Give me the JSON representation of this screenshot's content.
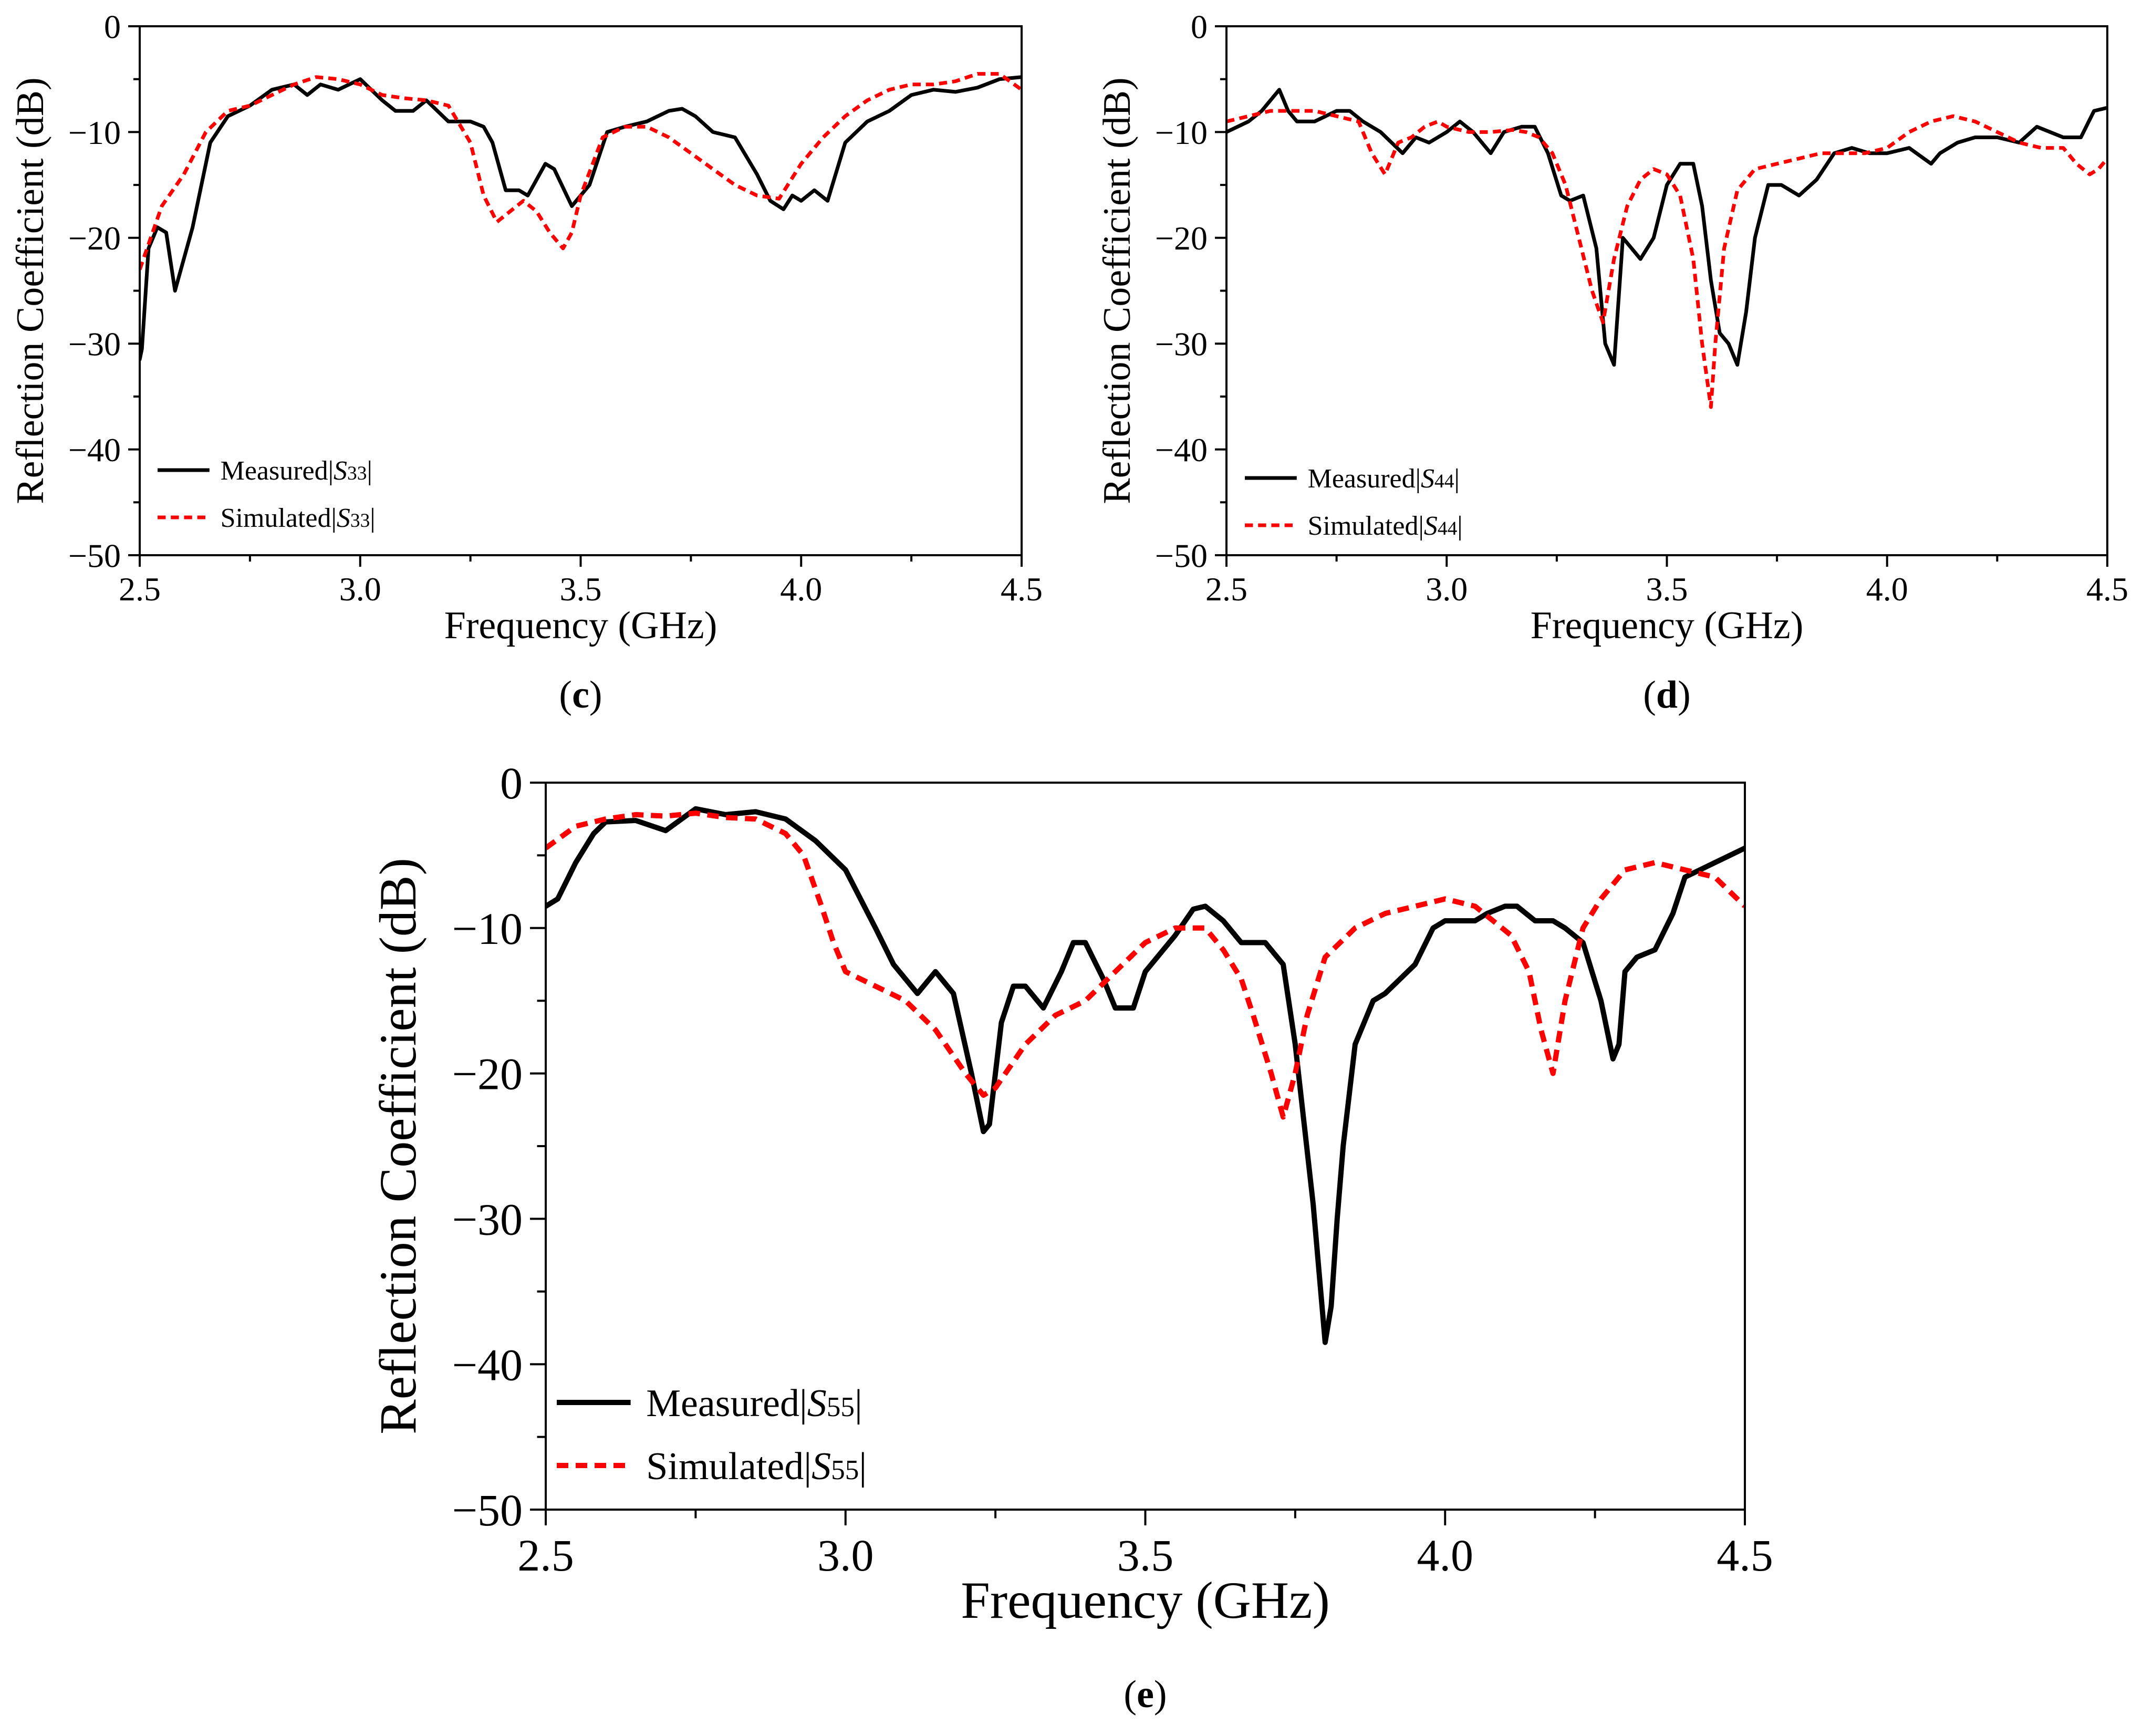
{
  "chart_data": [
    {
      "type": "line",
      "caption": "c",
      "xlabel": "Frequency (GHz)",
      "ylabel": "Reflection Coefficient (dB)",
      "xlim": [
        2.5,
        4.5
      ],
      "ylim": [
        -50,
        0
      ],
      "xticks": [
        "2.5",
        "3.0",
        "3.5",
        "4.0",
        "4.5"
      ],
      "yticks": [
        "0",
        "−10",
        "−20",
        "−30",
        "−40",
        "−50"
      ],
      "legend_position": "bottom-left",
      "series": [
        {
          "name": "Measured|S33|",
          "label_prefix": "Measured|",
          "label_var": "S",
          "label_sub": "33",
          "label_suffix": "|",
          "style": "solid",
          "color": "#000000",
          "x": [
            2.5,
            2.505,
            2.52,
            2.54,
            2.56,
            2.58,
            2.62,
            2.66,
            2.7,
            2.75,
            2.8,
            2.85,
            2.88,
            2.91,
            2.95,
            3.0,
            3.05,
            3.08,
            3.12,
            3.15,
            3.2,
            3.25,
            3.28,
            3.3,
            3.33,
            3.36,
            3.38,
            3.42,
            3.44,
            3.48,
            3.52,
            3.56,
            3.6,
            3.65,
            3.7,
            3.73,
            3.76,
            3.8,
            3.85,
            3.9,
            3.93,
            3.96,
            3.98,
            4.0,
            4.03,
            4.06,
            4.1,
            4.15,
            4.2,
            4.25,
            4.3,
            4.35,
            4.4,
            4.45,
            4.5
          ],
          "y": [
            -31.5,
            -30.5,
            -21,
            -19,
            -19.5,
            -25,
            -19,
            -11,
            -8.5,
            -7.5,
            -6,
            -5.5,
            -6.5,
            -5.5,
            -6,
            -5,
            -7,
            -8,
            -8,
            -7,
            -9,
            -9,
            -9.5,
            -11,
            -15.5,
            -15.5,
            -16,
            -13,
            -13.5,
            -17,
            -15,
            -10,
            -9.5,
            -9,
            -8,
            -7.8,
            -8.5,
            -10,
            -10.5,
            -14,
            -16.5,
            -17.3,
            -16,
            -16.5,
            -15.5,
            -16.5,
            -11,
            -9,
            -8,
            -6.5,
            -6,
            -6.2,
            -5.8,
            -5,
            -4.8
          ]
        },
        {
          "name": "Simulated|S33|",
          "label_prefix": "Simulated|",
          "label_var": "S",
          "label_sub": "33",
          "label_suffix": "|",
          "style": "dashed",
          "color": "#ff0000",
          "x": [
            2.5,
            2.55,
            2.6,
            2.65,
            2.7,
            2.75,
            2.8,
            2.85,
            2.9,
            2.95,
            3.0,
            3.05,
            3.1,
            3.15,
            3.2,
            3.25,
            3.28,
            3.31,
            3.34,
            3.37,
            3.4,
            3.43,
            3.46,
            3.48,
            3.5,
            3.55,
            3.6,
            3.65,
            3.7,
            3.75,
            3.8,
            3.85,
            3.9,
            3.95,
            4.0,
            4.05,
            4.1,
            4.15,
            4.2,
            4.25,
            4.3,
            4.35,
            4.4,
            4.45,
            4.5
          ],
          "y": [
            -23,
            -17,
            -14,
            -10,
            -8,
            -7.5,
            -6.5,
            -5.5,
            -4.8,
            -5,
            -5.5,
            -6.5,
            -6.8,
            -7,
            -7.5,
            -11,
            -16,
            -18.5,
            -17.5,
            -16.5,
            -17.5,
            -19.5,
            -21,
            -19.5,
            -16,
            -10.5,
            -9.5,
            -9.5,
            -10.5,
            -12,
            -13.5,
            -15,
            -16,
            -16.3,
            -13,
            -10.5,
            -8.5,
            -7,
            -6,
            -5.5,
            -5.5,
            -5.2,
            -4.5,
            -4.5,
            -6
          ]
        }
      ]
    },
    {
      "type": "line",
      "caption": "d",
      "xlabel": "Frequency (GHz)",
      "ylabel": "Reflection Coefficient (dB)",
      "xlim": [
        2.5,
        4.5
      ],
      "ylim": [
        -50,
        0
      ],
      "xticks": [
        "2.5",
        "3.0",
        "3.5",
        "4.0",
        "4.5"
      ],
      "yticks": [
        "0",
        "−10",
        "−20",
        "−30",
        "−40",
        "−50"
      ],
      "legend_position": "bottom-left",
      "series": [
        {
          "name": "Measured|S44|",
          "label_prefix": "Measured|",
          "label_var": "S",
          "label_sub": "44",
          "label_suffix": "|",
          "style": "solid",
          "color": "#000000",
          "x": [
            2.5,
            2.55,
            2.58,
            2.6,
            2.62,
            2.64,
            2.66,
            2.7,
            2.75,
            2.78,
            2.81,
            2.85,
            2.9,
            2.93,
            2.96,
            3.0,
            3.03,
            3.06,
            3.1,
            3.13,
            3.17,
            3.2,
            3.23,
            3.26,
            3.28,
            3.31,
            3.34,
            3.36,
            3.38,
            3.4,
            3.42,
            3.44,
            3.47,
            3.5,
            3.53,
            3.56,
            3.58,
            3.6,
            3.62,
            3.64,
            3.66,
            3.68,
            3.7,
            3.73,
            3.76,
            3.8,
            3.84,
            3.88,
            3.92,
            3.96,
            4.0,
            4.05,
            4.1,
            4.12,
            4.16,
            4.2,
            4.25,
            4.3,
            4.34,
            4.37,
            4.4,
            4.44,
            4.47,
            4.5
          ],
          "y": [
            -10,
            -9,
            -8,
            -7,
            -6,
            -8,
            -9,
            -9,
            -8,
            -8,
            -9,
            -10,
            -12,
            -10.5,
            -11,
            -10,
            -9,
            -10,
            -12,
            -10,
            -9.5,
            -9.5,
            -12,
            -16,
            -16.5,
            -16,
            -21,
            -30,
            -32,
            -20,
            -21,
            -22,
            -20,
            -15,
            -13,
            -13,
            -17,
            -24,
            -29,
            -30,
            -32,
            -27,
            -20,
            -15,
            -15,
            -16,
            -14.5,
            -12,
            -11.5,
            -12,
            -12,
            -11.5,
            -13,
            -12,
            -11,
            -10.5,
            -10.5,
            -11,
            -9.5,
            -10,
            -10.5,
            -10.5,
            -8,
            -7.7
          ]
        },
        {
          "name": "Simulated|S44|",
          "label_prefix": "Simulated|",
          "label_var": "S",
          "label_sub": "44",
          "label_suffix": "|",
          "style": "dashed",
          "color": "#ff0000",
          "x": [
            2.5,
            2.55,
            2.6,
            2.65,
            2.7,
            2.75,
            2.8,
            2.83,
            2.86,
            2.89,
            2.92,
            2.95,
            2.98,
            3.0,
            3.05,
            3.1,
            3.15,
            3.18,
            3.21,
            3.24,
            3.27,
            3.3,
            3.33,
            3.355,
            3.38,
            3.41,
            3.44,
            3.47,
            3.5,
            3.53,
            3.56,
            3.58,
            3.6,
            3.61,
            3.63,
            3.66,
            3.7,
            3.75,
            3.8,
            3.85,
            3.9,
            3.95,
            4.0,
            4.05,
            4.1,
            4.15,
            4.2,
            4.25,
            4.3,
            4.35,
            4.4,
            4.43,
            4.46,
            4.48,
            4.5
          ],
          "y": [
            -9,
            -8.5,
            -8,
            -8,
            -8,
            -8.5,
            -9,
            -12,
            -14,
            -11,
            -10.5,
            -9.5,
            -9,
            -9.5,
            -10,
            -10,
            -9.8,
            -10,
            -10.5,
            -12,
            -15,
            -20,
            -25,
            -28,
            -22,
            -17,
            -14.5,
            -13.5,
            -14,
            -16,
            -22,
            -30,
            -36,
            -30,
            -21,
            -15.5,
            -13.5,
            -13,
            -12.5,
            -12,
            -12,
            -12,
            -11.5,
            -10,
            -9,
            -8.5,
            -9,
            -10,
            -11,
            -11.5,
            -11.5,
            -13,
            -14,
            -13.5,
            -12.5
          ]
        }
      ]
    },
    {
      "type": "line",
      "caption": "e",
      "xlabel": "Frequency (GHz)",
      "ylabel": "Reflection Coefficient (dB)",
      "xlim": [
        2.5,
        4.5
      ],
      "ylim": [
        -50,
        0
      ],
      "xticks": [
        "2.5",
        "3.0",
        "3.5",
        "4.0",
        "4.5"
      ],
      "yticks": [
        "0",
        "−10",
        "−20",
        "−30",
        "−40",
        "−50"
      ],
      "legend_position": "bottom-left",
      "series": [
        {
          "name": "Measured|S55|",
          "label_prefix": "Measured|",
          "label_var": "S",
          "label_sub": "55",
          "label_suffix": "|",
          "style": "solid",
          "color": "#000000",
          "x": [
            2.5,
            2.52,
            2.55,
            2.58,
            2.6,
            2.65,
            2.7,
            2.75,
            2.8,
            2.85,
            2.9,
            2.95,
            3.0,
            3.05,
            3.08,
            3.12,
            3.15,
            3.18,
            3.21,
            3.23,
            3.24,
            3.26,
            3.28,
            3.3,
            3.33,
            3.36,
            3.38,
            3.4,
            3.43,
            3.45,
            3.48,
            3.5,
            3.55,
            3.58,
            3.6,
            3.63,
            3.66,
            3.68,
            3.7,
            3.73,
            3.75,
            3.78,
            3.8,
            3.81,
            3.82,
            3.83,
            3.85,
            3.88,
            3.9,
            3.95,
            3.98,
            4.0,
            4.02,
            4.05,
            4.07,
            4.1,
            4.12,
            4.15,
            4.18,
            4.2,
            4.23,
            4.26,
            4.28,
            4.29,
            4.3,
            4.32,
            4.35,
            4.38,
            4.4,
            4.45,
            4.5
          ],
          "y": [
            -8.5,
            -8,
            -5.5,
            -3.5,
            -2.7,
            -2.6,
            -3.3,
            -1.8,
            -2.2,
            -2,
            -2.5,
            -4,
            -6,
            -10,
            -12.5,
            -14.5,
            -13,
            -14.5,
            -20,
            -24,
            -23.5,
            -16.5,
            -14,
            -14,
            -15.5,
            -13,
            -11,
            -11,
            -13.5,
            -15.5,
            -15.5,
            -13,
            -10.5,
            -8.7,
            -8.5,
            -9.5,
            -11,
            -11,
            -11,
            -12.5,
            -18,
            -29,
            -38.5,
            -36,
            -30,
            -25,
            -18,
            -15,
            -14.5,
            -12.5,
            -10,
            -9.5,
            -9.5,
            -9.5,
            -9,
            -8.5,
            -8.5,
            -9.5,
            -9.5,
            -10,
            -11,
            -15,
            -19,
            -18,
            -13,
            -12,
            -11.5,
            -9,
            -6.5,
            -5.5,
            -4.5
          ]
        },
        {
          "name": "Simulated|S55|",
          "label_prefix": "Simulated|",
          "label_var": "S",
          "label_sub": "55",
          "label_suffix": "|",
          "style": "dashed",
          "color": "#ff0000",
          "x": [
            2.5,
            2.55,
            2.6,
            2.65,
            2.7,
            2.75,
            2.8,
            2.85,
            2.9,
            2.93,
            2.96,
            2.98,
            3.0,
            3.05,
            3.1,
            3.15,
            3.2,
            3.23,
            3.25,
            3.3,
            3.35,
            3.4,
            3.45,
            3.5,
            3.55,
            3.6,
            3.63,
            3.66,
            3.68,
            3.71,
            3.73,
            3.75,
            3.77,
            3.8,
            3.85,
            3.9,
            3.95,
            4.0,
            4.05,
            4.08,
            4.11,
            4.14,
            4.16,
            4.18,
            4.2,
            4.23,
            4.26,
            4.3,
            4.35,
            4.4,
            4.45,
            4.5
          ],
          "y": [
            -4.5,
            -3,
            -2.5,
            -2.2,
            -2.3,
            -2.1,
            -2.4,
            -2.5,
            -3.5,
            -5,
            -8.5,
            -11,
            -13,
            -14,
            -15,
            -17,
            -20,
            -21.5,
            -21,
            -18,
            -16,
            -15,
            -13,
            -11,
            -10,
            -10,
            -11.5,
            -13.5,
            -16,
            -20,
            -23,
            -20,
            -16,
            -12,
            -10,
            -9,
            -8.5,
            -8,
            -8.5,
            -9.5,
            -10.5,
            -13,
            -17,
            -20,
            -15,
            -10,
            -8,
            -6,
            -5.5,
            -6,
            -6.5,
            -8.5
          ]
        }
      ]
    }
  ]
}
